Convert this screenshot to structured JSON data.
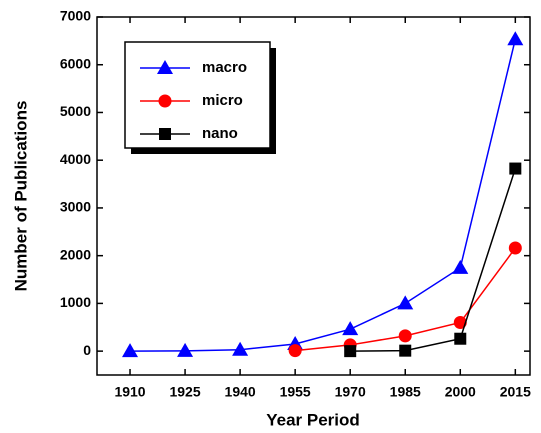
{
  "chart_data": {
    "type": "line",
    "xlabel": "Year Period",
    "ylabel": "Number of Publications",
    "x": [
      1910,
      1925,
      1940,
      1955,
      1970,
      1985,
      2000,
      2015
    ],
    "series": [
      {
        "name": "macro",
        "color": "#0000ff",
        "marker": "triangle",
        "values": [
          0,
          5,
          30,
          150,
          460,
          1000,
          1745,
          6535
        ]
      },
      {
        "name": "micro",
        "color": "#ff0000",
        "marker": "circle",
        "values": [
          null,
          null,
          null,
          10,
          130,
          320,
          600,
          2160
        ]
      },
      {
        "name": "nano",
        "color": "#000000",
        "marker": "square",
        "values": [
          null,
          null,
          null,
          null,
          0,
          10,
          260,
          3825
        ]
      }
    ],
    "xlim": [
      1901,
      2019
    ],
    "xticks": [
      1910,
      1925,
      1940,
      1955,
      1970,
      1985,
      2000,
      2015
    ],
    "ylim": [
      -500,
      7000
    ],
    "yticks": [
      0,
      1000,
      2000,
      3000,
      4000,
      5000,
      6000,
      7000
    ],
    "legend": "upper left",
    "grid": false
  }
}
